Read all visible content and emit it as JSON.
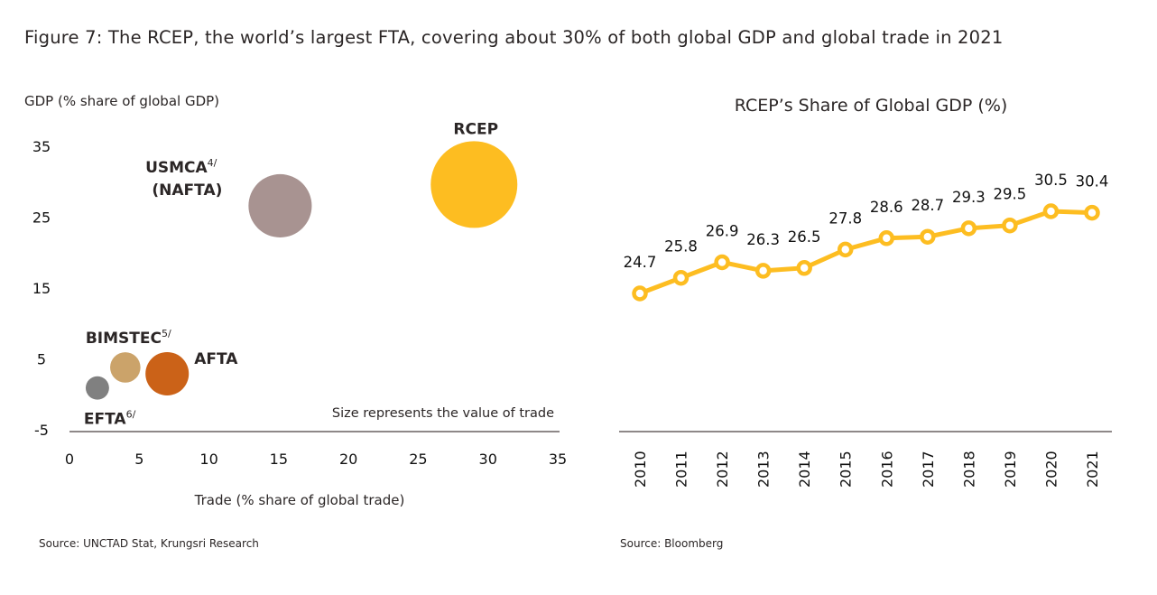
{
  "figure_title": "Figure 7: The RCEP, the world’s largest FTA, covering about 30% of both global GDP and global trade in 2021",
  "left_source": "Source: UNCTAD Stat, Krungsri Research",
  "right_source": "Source: Bloomberg",
  "chart_data": [
    {
      "type": "scatter",
      "subtype": "bubble",
      "title": "",
      "xlabel": "Trade (% share of global trade)",
      "ylabel": "GDP (% share of global GDP)",
      "xlim": [
        0,
        35
      ],
      "ylim": [
        -5,
        35
      ],
      "x_ticks": [
        "0",
        "5",
        "10",
        "15",
        "20",
        "25",
        "30",
        "35"
      ],
      "y_ticks": [
        "35",
        "25",
        "15",
        "5",
        "-5"
      ],
      "grid": false,
      "annotation": "Size represents the value of trade",
      "points": [
        {
          "label": "RCEP",
          "superscript": "",
          "x": 29.0,
          "y": 29.6,
          "size": 1.0,
          "color": "#fdbd21"
        },
        {
          "label": "USMCA",
          "superscript": "4/",
          "label_line2": "(NAFTA)",
          "x": 15.1,
          "y": 26.6,
          "size": 0.73,
          "color": "#a89391"
        },
        {
          "label": "AFTA",
          "superscript": "",
          "x": 7.0,
          "y": 2.9,
          "size": 0.5,
          "color": "#cb6218"
        },
        {
          "label": "BIMSTEC",
          "superscript": "5/",
          "x": 4.0,
          "y": 3.8,
          "size": 0.35,
          "color": "#cba36a"
        },
        {
          "label": "EFTA",
          "superscript": "6/",
          "x": 2.0,
          "y": 0.9,
          "size": 0.27,
          "color": "#808080"
        }
      ]
    },
    {
      "type": "line",
      "title": "RCEP’s Share of Global GDP (%)",
      "xlabel": "",
      "ylabel": "",
      "categories": [
        "2010",
        "2011",
        "2012",
        "2013",
        "2014",
        "2015",
        "2016",
        "2017",
        "2018",
        "2019",
        "2020",
        "2021"
      ],
      "series": [
        {
          "name": "RCEP's Share of Global GDP (%)",
          "color": "#fdbd21",
          "values": [
            24.7,
            25.8,
            26.9,
            26.3,
            26.5,
            27.8,
            28.6,
            28.7,
            29.3,
            29.5,
            30.5,
            30.4
          ]
        }
      ],
      "data_labels": [
        "24.7",
        "25.8",
        "26.9",
        "26.3",
        "26.5",
        "27.8",
        "28.6",
        "28.7",
        "29.3",
        "29.5",
        "30.5",
        "30.4"
      ],
      "grid": false,
      "legend": "none"
    }
  ]
}
